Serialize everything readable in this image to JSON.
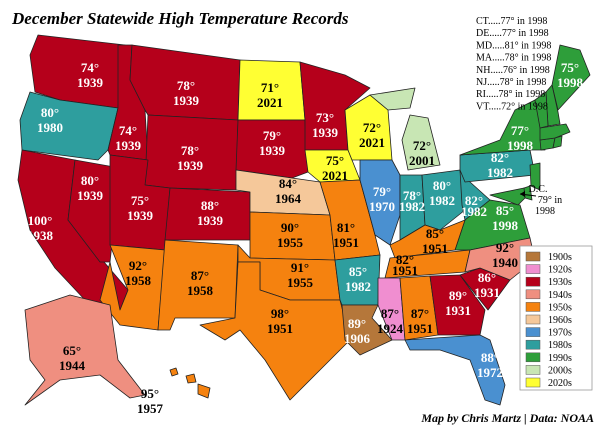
{
  "title": "December Statewide High Temperature Records",
  "credit": "Map by Chris Martz | Data: NOAA",
  "states": [
    {
      "temp": "74°",
      "year": "1939",
      "color": "#b5001b"
    },
    {
      "temp": "80°",
      "year": "1980",
      "color": "#2e9e9e"
    },
    {
      "temp": "100°",
      "year": "1938",
      "color": "#b5001b"
    },
    {
      "temp": "80°",
      "year": "1939",
      "color": "#b5001b"
    },
    {
      "temp": "74°",
      "year": "1939",
      "color": "#b5001b"
    },
    {
      "temp": "78°",
      "year": "1939",
      "color": "#b5001b"
    },
    {
      "temp": "78°",
      "year": "1939",
      "color": "#b5001b"
    },
    {
      "temp": "75°",
      "year": "1939",
      "color": "#b5001b"
    },
    {
      "temp": "88°",
      "year": "1939",
      "color": "#b5001b"
    },
    {
      "temp": "92°",
      "year": "1958",
      "color": "#f5820f"
    },
    {
      "temp": "87°",
      "year": "1958",
      "color": "#f5820f"
    },
    {
      "temp": "71°",
      "year": "2021",
      "color": "#ffff33"
    },
    {
      "temp": "79°",
      "year": "1939",
      "color": "#b5001b"
    },
    {
      "temp": "84°",
      "year": "1964",
      "color": "#f5c89a"
    },
    {
      "temp": "90°",
      "year": "1955",
      "color": "#f5820f"
    },
    {
      "temp": "91°",
      "year": "1955",
      "color": "#f5820f"
    },
    {
      "temp": "98°",
      "year": "1951",
      "color": "#f5820f"
    },
    {
      "temp": "73°",
      "year": "1939",
      "color": "#b5001b"
    },
    {
      "temp": "75°",
      "year": "2021",
      "color": "#ffff33"
    },
    {
      "temp": "72°",
      "year": "2021",
      "color": "#ffff33"
    },
    {
      "temp": "81°",
      "year": "1951",
      "color": "#f5820f"
    },
    {
      "temp": "85°",
      "year": "1982",
      "color": "#2e9e9e"
    },
    {
      "temp": "89°",
      "year": "1906",
      "color": "#b5773a"
    },
    {
      "temp": "79°",
      "year": "1970",
      "color": "#4a90d0"
    },
    {
      "temp": "72°",
      "year": "2001",
      "color": "#c8e6b4"
    },
    {
      "temp": "78°",
      "year": "1982",
      "color": "#2e9e9e"
    },
    {
      "temp": "80°",
      "year": "1982",
      "color": "#2e9e9e"
    },
    {
      "temp": "82°",
      "year": "1982",
      "color": "#2e9e9e"
    },
    {
      "temp": "82°",
      "year": "1982",
      "color": "#2e9e9e"
    },
    {
      "temp": "77°",
      "year": "1998",
      "color": "#2e9e3a"
    },
    {
      "temp": "75°",
      "year": "1998",
      "color": "#2e9e3a"
    },
    {
      "temp": "85°",
      "year": "1998",
      "color": "#2e9e3a"
    },
    {
      "temp": "85°",
      "year": "1951",
      "color": "#f5820f"
    },
    {
      "temp": "82°",
      "year": "1951",
      "color": "#f5820f"
    },
    {
      "temp": "87°",
      "year": "1924",
      "color": "#f08ed0"
    },
    {
      "temp": "87°",
      "year": "1951",
      "color": "#f5820f"
    },
    {
      "temp": "89°",
      "year": "1931",
      "color": "#b5001b"
    },
    {
      "temp": "88°",
      "year": "1972",
      "color": "#4a90d0"
    },
    {
      "temp": "86°",
      "year": "1931",
      "color": "#b5001b"
    },
    {
      "temp": "92°",
      "year": "1940",
      "color": "#ef8f80"
    },
    {
      "temp": "65°",
      "year": "1944",
      "color": "#ef8f80"
    },
    {
      "temp": "95°",
      "year": "1957",
      "color": "#f5820f"
    }
  ],
  "small_states": [
    {
      "text": "CT.....77° in 1998",
      "color": "#2e9e3a"
    },
    {
      "text": "DE.....77° in 1998",
      "color": "#2e9e3a"
    },
    {
      "text": "MD.....81° in 1998",
      "color": "#2e9e3a"
    },
    {
      "text": "MA.....78° in 1998",
      "color": "#2e9e3a"
    },
    {
      "text": "NH.....76° in 1998",
      "color": "#2e9e3a"
    },
    {
      "text": "NJ.....78° in 1998",
      "color": "#2e9e3a"
    },
    {
      "text": "RI.....78° in 1998",
      "color": "#2e9e3a"
    },
    {
      "text": "VT.....72° in 1998",
      "color": "#2e9e3a"
    }
  ],
  "dc": {
    "lines": [
      "D.C.",
      "79° in",
      "1998"
    ]
  },
  "legend": [
    {
      "name": "1900s",
      "color": "#b5773a"
    },
    {
      "name": "1920s",
      "color": "#f08ed0"
    },
    {
      "name": "1930s",
      "color": "#b5001b"
    },
    {
      "name": "1940s",
      "color": "#ef8f80"
    },
    {
      "name": "1950s",
      "color": "#f5820f"
    },
    {
      "name": "1960s",
      "color": "#f5c89a"
    },
    {
      "name": "1970s",
      "color": "#4a90d0"
    },
    {
      "name": "1980s",
      "color": "#2e9e9e"
    },
    {
      "name": "1990s",
      "color": "#2e9e3a"
    },
    {
      "name": "2000s",
      "color": "#c8e6b4"
    },
    {
      "name": "2020s",
      "color": "#ffff33"
    }
  ]
}
